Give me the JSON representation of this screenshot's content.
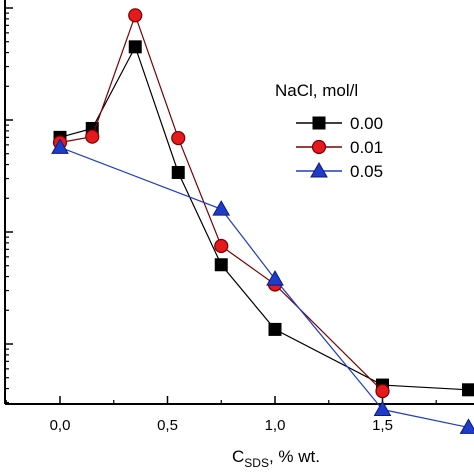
{
  "chart_data": {
    "type": "line",
    "xlabel_main": "C",
    "xlabel_sub": "SDS",
    "xlabel_rest": ", % wt.",
    "x_ticks": [
      "0,0",
      "0,5",
      "1,0",
      "1,5"
    ],
    "x_tick_values": [
      0,
      0.5,
      1.0,
      1.5
    ],
    "xlim": [
      -0.2,
      1.9
    ],
    "y_scale": "log",
    "y_ticks_labeled": false,
    "legend": {
      "title": "NaCl, mol/l",
      "position": "top-right"
    },
    "series": [
      {
        "name": "0.00",
        "marker": "square",
        "fill": "#000000",
        "line": "#000000",
        "x": [
          0,
          0.15,
          0.35,
          0.55,
          0.75,
          1.0,
          1.5,
          1.9
        ],
        "y": [
          0.7,
          0.84,
          4.5,
          0.34,
          0.051,
          0.0135,
          0.0043,
          0.0039
        ]
      },
      {
        "name": "0.01",
        "marker": "circle",
        "fill": "#e41a1c",
        "line": "#7a0000",
        "x": [
          0,
          0.15,
          0.35,
          0.55,
          0.75,
          1.0,
          1.5
        ],
        "y": [
          0.63,
          0.71,
          8.6,
          0.69,
          0.075,
          0.034,
          0.0038
        ]
      },
      {
        "name": "0.05",
        "marker": "triangle",
        "fill": "#1f3cc9",
        "line": "#1f3cc9",
        "x": [
          0,
          0.75,
          1.0,
          1.5,
          1.9
        ],
        "y": [
          0.57,
          0.16,
          0.038,
          0.0026,
          0.0018
        ]
      }
    ]
  }
}
